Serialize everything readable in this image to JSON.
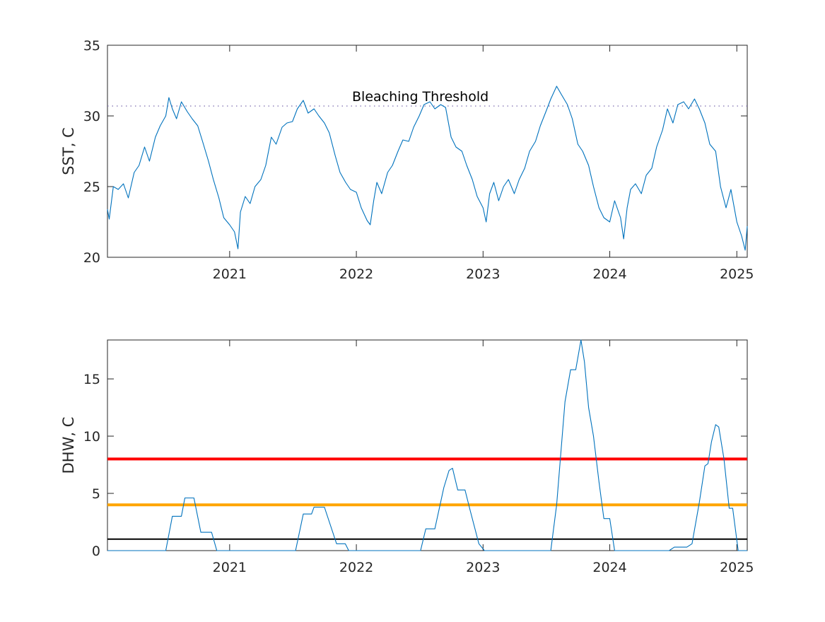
{
  "chart_data": [
    {
      "type": "line",
      "ylabel": "SST, C",
      "xlabel": "",
      "xlim": [
        "2020-01-15",
        "2025-01-31"
      ],
      "ylim": [
        20,
        35
      ],
      "xticks": [
        {
          "date": "2021-01-01",
          "label": "2021"
        },
        {
          "date": "2022-01-01",
          "label": "2022"
        },
        {
          "date": "2023-01-01",
          "label": "2023"
        },
        {
          "date": "2024-01-01",
          "label": "2024"
        },
        {
          "date": "2025-01-01",
          "label": "2025"
        }
      ],
      "yticks": [
        20,
        25,
        30,
        35
      ],
      "grid": false,
      "series": [
        {
          "color": "#0072BD",
          "points": [
            [
              "2020-01-15",
              23.4
            ],
            [
              "2020-01-20",
              22.7
            ],
            [
              "2020-02-01",
              25.0
            ],
            [
              "2020-02-15",
              24.8
            ],
            [
              "2020-03-01",
              25.2
            ],
            [
              "2020-03-15",
              24.2
            ],
            [
              "2020-04-01",
              26.0
            ],
            [
              "2020-04-15",
              26.5
            ],
            [
              "2020-05-01",
              27.8
            ],
            [
              "2020-05-15",
              26.8
            ],
            [
              "2020-06-01",
              28.5
            ],
            [
              "2020-06-15",
              29.3
            ],
            [
              "2020-07-01",
              30.0
            ],
            [
              "2020-07-10",
              31.3
            ],
            [
              "2020-07-20",
              30.5
            ],
            [
              "2020-08-01",
              29.8
            ],
            [
              "2020-08-15",
              31.0
            ],
            [
              "2020-09-01",
              30.3
            ],
            [
              "2020-09-15",
              29.8
            ],
            [
              "2020-10-01",
              29.3
            ],
            [
              "2020-10-15",
              28.2
            ],
            [
              "2020-11-01",
              26.8
            ],
            [
              "2020-11-15",
              25.5
            ],
            [
              "2020-12-01",
              24.2
            ],
            [
              "2020-12-15",
              22.8
            ],
            [
              "2021-01-01",
              22.3
            ],
            [
              "2021-01-15",
              21.8
            ],
            [
              "2021-01-25",
              20.6
            ],
            [
              "2021-02-01",
              23.2
            ],
            [
              "2021-02-15",
              24.3
            ],
            [
              "2021-03-01",
              23.8
            ],
            [
              "2021-03-15",
              25.0
            ],
            [
              "2021-04-01",
              25.5
            ],
            [
              "2021-04-15",
              26.5
            ],
            [
              "2021-05-01",
              28.5
            ],
            [
              "2021-05-15",
              28.0
            ],
            [
              "2021-06-01",
              29.2
            ],
            [
              "2021-06-15",
              29.5
            ],
            [
              "2021-07-01",
              29.6
            ],
            [
              "2021-07-15",
              30.5
            ],
            [
              "2021-08-01",
              31.1
            ],
            [
              "2021-08-15",
              30.2
            ],
            [
              "2021-09-01",
              30.5
            ],
            [
              "2021-09-15",
              30.0
            ],
            [
              "2021-10-01",
              29.5
            ],
            [
              "2021-10-15",
              28.8
            ],
            [
              "2021-11-01",
              27.2
            ],
            [
              "2021-11-15",
              26.0
            ],
            [
              "2021-12-01",
              25.3
            ],
            [
              "2021-12-15",
              24.8
            ],
            [
              "2022-01-01",
              24.6
            ],
            [
              "2022-01-15",
              23.5
            ],
            [
              "2022-02-01",
              22.6
            ],
            [
              "2022-02-10",
              22.3
            ],
            [
              "2022-02-20",
              24.0
            ],
            [
              "2022-03-01",
              25.3
            ],
            [
              "2022-03-15",
              24.5
            ],
            [
              "2022-04-01",
              26.0
            ],
            [
              "2022-04-15",
              26.5
            ],
            [
              "2022-05-01",
              27.5
            ],
            [
              "2022-05-15",
              28.3
            ],
            [
              "2022-06-01",
              28.2
            ],
            [
              "2022-06-15",
              29.2
            ],
            [
              "2022-07-01",
              30.0
            ],
            [
              "2022-07-15",
              30.8
            ],
            [
              "2022-08-01",
              31.0
            ],
            [
              "2022-08-15",
              30.5
            ],
            [
              "2022-09-01",
              30.8
            ],
            [
              "2022-09-15",
              30.6
            ],
            [
              "2022-10-01",
              28.5
            ],
            [
              "2022-10-15",
              27.8
            ],
            [
              "2022-11-01",
              27.5
            ],
            [
              "2022-11-15",
              26.5
            ],
            [
              "2022-12-01",
              25.5
            ],
            [
              "2022-12-15",
              24.3
            ],
            [
              "2023-01-01",
              23.5
            ],
            [
              "2023-01-10",
              22.5
            ],
            [
              "2023-01-20",
              24.5
            ],
            [
              "2023-02-01",
              25.3
            ],
            [
              "2023-02-15",
              24.0
            ],
            [
              "2023-03-01",
              25.0
            ],
            [
              "2023-03-15",
              25.5
            ],
            [
              "2023-04-01",
              24.5
            ],
            [
              "2023-04-15",
              25.5
            ],
            [
              "2023-05-01",
              26.3
            ],
            [
              "2023-05-15",
              27.5
            ],
            [
              "2023-06-01",
              28.2
            ],
            [
              "2023-06-15",
              29.3
            ],
            [
              "2023-07-01",
              30.3
            ],
            [
              "2023-07-15",
              31.2
            ],
            [
              "2023-08-01",
              32.1
            ],
            [
              "2023-08-15",
              31.5
            ],
            [
              "2023-09-01",
              30.8
            ],
            [
              "2023-09-15",
              29.8
            ],
            [
              "2023-10-01",
              28.0
            ],
            [
              "2023-10-15",
              27.5
            ],
            [
              "2023-11-01",
              26.5
            ],
            [
              "2023-11-15",
              25.0
            ],
            [
              "2023-12-01",
              23.5
            ],
            [
              "2023-12-15",
              22.8
            ],
            [
              "2024-01-01",
              22.5
            ],
            [
              "2024-01-15",
              24.0
            ],
            [
              "2024-02-01",
              22.8
            ],
            [
              "2024-02-10",
              21.3
            ],
            [
              "2024-02-20",
              23.5
            ],
            [
              "2024-03-01",
              24.8
            ],
            [
              "2024-03-15",
              25.2
            ],
            [
              "2024-04-01",
              24.5
            ],
            [
              "2024-04-15",
              25.8
            ],
            [
              "2024-05-01",
              26.3
            ],
            [
              "2024-05-15",
              27.8
            ],
            [
              "2024-06-01",
              29.0
            ],
            [
              "2024-06-15",
              30.5
            ],
            [
              "2024-07-01",
              29.5
            ],
            [
              "2024-07-15",
              30.8
            ],
            [
              "2024-08-01",
              31.0
            ],
            [
              "2024-08-15",
              30.5
            ],
            [
              "2024-09-01",
              31.2
            ],
            [
              "2024-09-15",
              30.5
            ],
            [
              "2024-10-01",
              29.5
            ],
            [
              "2024-10-15",
              28.0
            ],
            [
              "2024-11-01",
              27.5
            ],
            [
              "2024-11-15",
              25.0
            ],
            [
              "2024-12-01",
              23.5
            ],
            [
              "2024-12-15",
              24.8
            ],
            [
              "2025-01-01",
              22.5
            ],
            [
              "2025-01-15",
              21.5
            ],
            [
              "2025-01-25",
              20.5
            ],
            [
              "2025-01-31",
              22.2
            ]
          ]
        }
      ],
      "reference_lines": [
        {
          "y": 30.7,
          "color": "#7E6DAF",
          "style": "dotted",
          "label": "Bleaching Threshold"
        }
      ]
    },
    {
      "type": "line",
      "ylabel": "DHW, C",
      "xlabel": "",
      "xlim": [
        "2020-01-15",
        "2025-01-31"
      ],
      "ylim": [
        0,
        18.4
      ],
      "xticks": [
        {
          "date": "2021-01-01",
          "label": "2021"
        },
        {
          "date": "2022-01-01",
          "label": "2022"
        },
        {
          "date": "2023-01-01",
          "label": "2023"
        },
        {
          "date": "2024-01-01",
          "label": "2024"
        },
        {
          "date": "2025-01-01",
          "label": "2025"
        }
      ],
      "yticks": [
        0,
        5,
        10,
        15
      ],
      "grid": false,
      "series": [
        {
          "color": "#0072BD",
          "points": [
            [
              "2020-01-15",
              0
            ],
            [
              "2020-07-01",
              0
            ],
            [
              "2020-07-20",
              3.0
            ],
            [
              "2020-08-15",
              3.0
            ],
            [
              "2020-08-25",
              4.6
            ],
            [
              "2020-09-20",
              4.6
            ],
            [
              "2020-10-10",
              1.6
            ],
            [
              "2020-11-10",
              1.6
            ],
            [
              "2020-11-25",
              0
            ],
            [
              "2021-07-10",
              0
            ],
            [
              "2021-08-01",
              3.2
            ],
            [
              "2021-08-25",
              3.2
            ],
            [
              "2021-09-01",
              3.8
            ],
            [
              "2021-10-01",
              3.8
            ],
            [
              "2021-11-05",
              0.6
            ],
            [
              "2021-11-30",
              0.6
            ],
            [
              "2021-12-10",
              0
            ],
            [
              "2022-07-05",
              0
            ],
            [
              "2022-07-20",
              1.9
            ],
            [
              "2022-08-15",
              1.9
            ],
            [
              "2022-09-10",
              5.5
            ],
            [
              "2022-09-25",
              7.0
            ],
            [
              "2022-10-05",
              7.2
            ],
            [
              "2022-10-20",
              5.3
            ],
            [
              "2022-11-10",
              5.3
            ],
            [
              "2022-11-25",
              3.5
            ],
            [
              "2022-12-20",
              0.6
            ],
            [
              "2023-01-05",
              0
            ],
            [
              "2023-07-15",
              0
            ],
            [
              "2023-08-01",
              4.0
            ],
            [
              "2023-08-25",
              13.0
            ],
            [
              "2023-09-10",
              15.8
            ],
            [
              "2023-09-25",
              15.8
            ],
            [
              "2023-10-10",
              18.4
            ],
            [
              "2023-10-20",
              16.5
            ],
            [
              "2023-11-01",
              12.5
            ],
            [
              "2023-11-15",
              10.0
            ],
            [
              "2023-12-01",
              6.0
            ],
            [
              "2023-12-15",
              2.8
            ],
            [
              "2024-01-01",
              2.8
            ],
            [
              "2024-01-15",
              0
            ],
            [
              "2024-06-20",
              0
            ],
            [
              "2024-07-05",
              0.3
            ],
            [
              "2024-08-10",
              0.3
            ],
            [
              "2024-08-25",
              0.6
            ],
            [
              "2024-09-15",
              4.2
            ],
            [
              "2024-10-01",
              7.4
            ],
            [
              "2024-10-10",
              7.6
            ],
            [
              "2024-10-20",
              9.5
            ],
            [
              "2024-11-01",
              11.0
            ],
            [
              "2024-11-10",
              10.8
            ],
            [
              "2024-11-25",
              8.0
            ],
            [
              "2024-12-10",
              3.7
            ],
            [
              "2024-12-20",
              3.7
            ],
            [
              "2025-01-05",
              0
            ],
            [
              "2025-01-31",
              0
            ]
          ]
        }
      ],
      "reference_lines": [
        {
          "y": 8,
          "color": "#FF0000",
          "style": "solid"
        },
        {
          "y": 4,
          "color": "#FFA500",
          "style": "solid"
        },
        {
          "y": 1,
          "color": "#000000",
          "style": "solid"
        }
      ]
    }
  ]
}
